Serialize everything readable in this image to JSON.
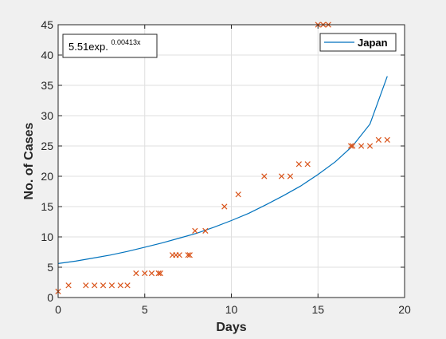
{
  "chart_data": {
    "type": "scatter",
    "xlabel": "Days",
    "ylabel": "No. of Cases",
    "xlim": [
      0,
      20
    ],
    "ylim": [
      0,
      45
    ],
    "xticks": [
      "0",
      "5",
      "10",
      "15",
      "20"
    ],
    "yticks": [
      "0",
      "5",
      "10",
      "15",
      "20",
      "25",
      "30",
      "35",
      "40",
      "45"
    ],
    "grid": true,
    "legend": {
      "placement": "top-right",
      "entries": [
        "Japan"
      ]
    },
    "annotation": {
      "base": "5.51exp.",
      "exponent": "0.00413x"
    },
    "series": [
      {
        "name": "Japan",
        "kind": "line",
        "color": "#0072bd",
        "x": [
          0,
          1,
          2,
          3,
          4,
          5,
          6,
          7,
          8,
          9,
          10,
          11,
          12,
          13,
          14,
          15,
          16,
          17,
          18,
          19
        ],
        "y": [
          5.6,
          6.0,
          6.5,
          7.0,
          7.6,
          8.3,
          9.0,
          9.8,
          10.6,
          11.6,
          12.7,
          13.9,
          15.3,
          16.8,
          18.4,
          20.3,
          22.4,
          25.0,
          28.6,
          36.5
        ]
      },
      {
        "kind": "scatter",
        "marker": "x",
        "color": "#d95319",
        "x": [
          0,
          0.6,
          1.6,
          2.1,
          2.6,
          3.1,
          3.6,
          4.0,
          4.5,
          5.0,
          5.4,
          5.8,
          5.9,
          6.6,
          6.8,
          7.0,
          7.5,
          7.6,
          7.9,
          8.5,
          9.6,
          10.4,
          11.9,
          12.9,
          13.4,
          13.9,
          14.4,
          15.0,
          15.3,
          15.6,
          16.9,
          17.0,
          17.5,
          18.0,
          18.5,
          19.0
        ],
        "y": [
          1,
          2,
          2,
          2,
          2,
          2,
          2,
          2,
          4,
          4,
          4,
          4,
          4,
          7,
          7,
          7,
          7,
          7,
          11,
          11,
          15,
          17,
          20,
          20,
          20,
          22,
          22,
          45,
          45,
          45,
          25,
          25,
          25,
          25,
          26,
          26
        ]
      }
    ]
  }
}
